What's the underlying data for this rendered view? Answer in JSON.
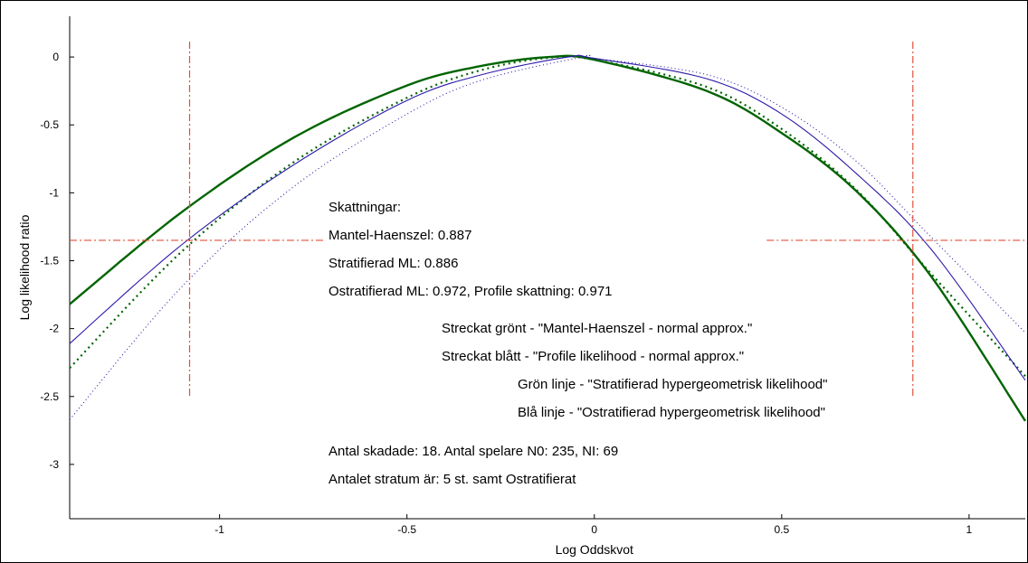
{
  "chart_data": {
    "type": "line",
    "xlabel": "Log Oddskvot",
    "ylabel": "Log likelihood ratio",
    "xlim": [
      -1.4,
      1.15
    ],
    "ylim": [
      -3.4,
      0.3
    ],
    "xticks": [
      -1,
      -0.5,
      0,
      0.5,
      1
    ],
    "yticks": [
      0,
      -0.5,
      -1,
      -1.5,
      -2,
      -2.5,
      -3
    ],
    "xtick_labels": [
      "-1",
      "-0.5",
      "0",
      "0.5",
      "1"
    ],
    "ytick_labels": [
      "0",
      "-0.5",
      "-1",
      "-1.5",
      "-2",
      "-2.5",
      "-3"
    ],
    "grid": false,
    "series": [
      {
        "color": "#006400",
        "style": "solid",
        "x": [
          -1.4,
          -1.1,
          -0.8,
          -0.5,
          -0.3,
          -0.12,
          0.0,
          0.3,
          0.5,
          0.7,
          0.9,
          1.15
        ],
        "y": [
          -1.82,
          -1.14,
          -0.59,
          -0.21,
          -0.065,
          0.0,
          -0.02,
          -0.25,
          -0.56,
          -0.99,
          -1.62,
          -2.68
        ]
      },
      {
        "color": "#006400",
        "style": "dotted",
        "x": [
          -1.4,
          -1.1,
          -0.8,
          -0.5,
          -0.3,
          -0.12,
          0.0,
          0.3,
          0.5,
          0.7,
          0.9,
          1.15
        ],
        "y": [
          -2.29,
          -1.43,
          -0.77,
          -0.3,
          -0.095,
          -0.005,
          -0.02,
          -0.22,
          -0.53,
          -0.98,
          -1.6,
          -2.35
        ]
      },
      {
        "color": "#2b1aa8",
        "style": "solid",
        "x": [
          -1.4,
          -1.1,
          -0.8,
          -0.5,
          -0.3,
          -0.07,
          0.0,
          0.3,
          0.5,
          0.7,
          0.9,
          1.15
        ],
        "y": [
          -2.11,
          -1.38,
          -0.79,
          -0.32,
          -0.13,
          0.0,
          -0.01,
          -0.16,
          -0.42,
          -0.86,
          -1.42,
          -2.38
        ]
      },
      {
        "color": "#2b1aa8",
        "style": "dotted",
        "x": [
          -1.4,
          -1.1,
          -0.8,
          -0.5,
          -0.3,
          -0.03,
          0.0,
          0.3,
          0.5,
          0.7,
          0.9,
          1.15
        ],
        "y": [
          -2.67,
          -1.69,
          -0.95,
          -0.42,
          -0.17,
          0.0,
          -0.01,
          -0.13,
          -0.37,
          -0.77,
          -1.33,
          -2.03
        ]
      }
    ],
    "reference_lines": {
      "color": "#e0523a",
      "vertical_x": [
        -1.08,
        0.85
      ],
      "horizontal_y": -1.35
    },
    "annotations": [
      "Skattningar:",
      "Mantel-Haenszel: 0.887",
      "Stratifierad ML: 0.886",
      "Ostratifierad ML: 0.972, Profile skattning: 0.971",
      "Streckat grönt - \"Mantel-Haenszel - normal approx.\"",
      "Streckat blått - \"Profile likelihood - normal approx.\"",
      "Grön linje - \"Stratifierad hypergeometrisk likelihood\"",
      "Blå linje - \"Ostratifierad hypergeometrisk likelihood\"",
      "Antal skadade: 18. Antal spelare N0: 235, NI: 69",
      "Antalet stratum är: 5 st. samt Ostratifierat"
    ]
  }
}
